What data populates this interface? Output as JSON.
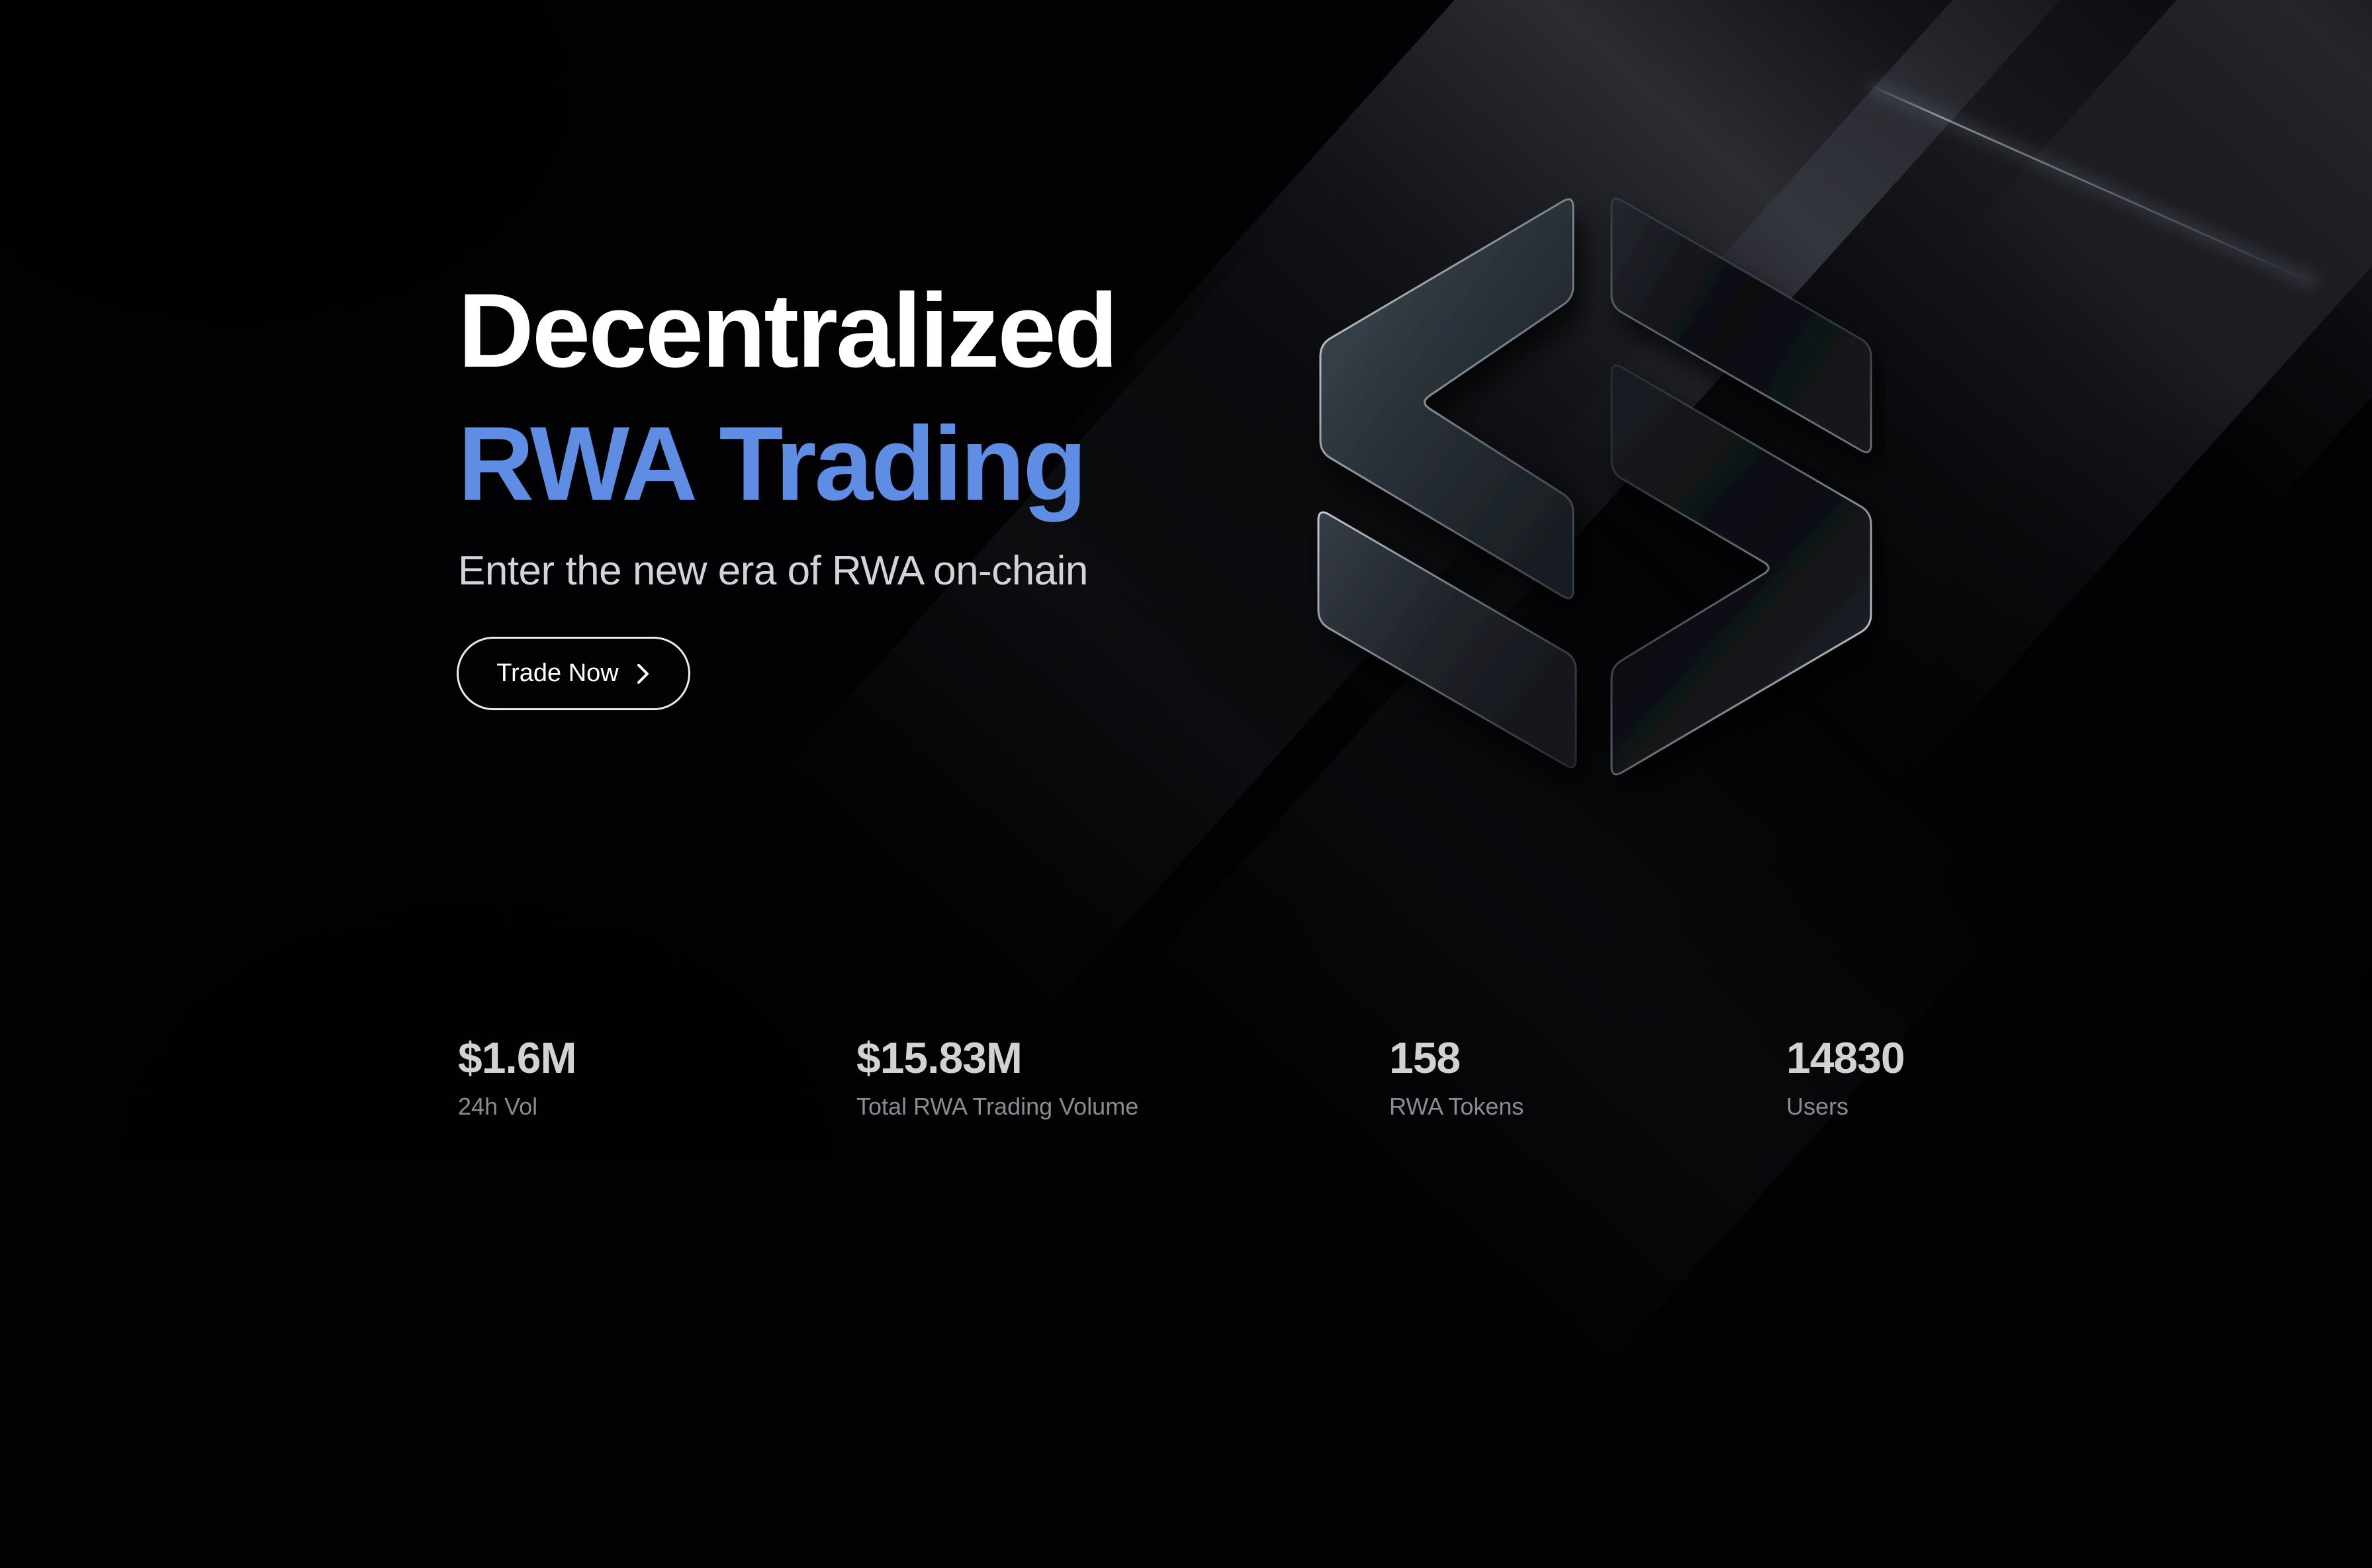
{
  "page": {
    "title": "Decentralized RWA Trading"
  },
  "hero": {
    "title_line1": "Decentralized",
    "title_line2": "RWA Trading",
    "subtitle": "Enter the new era of RWA on-chain",
    "cta": {
      "label": "Trade Now",
      "icon": "chevron-right"
    }
  },
  "logo": {
    "icon": "s-hexagon-glass-logo"
  },
  "stats": [
    {
      "value": "$1.6M",
      "label": "24h Vol"
    },
    {
      "value": "$15.83M",
      "label": "Total RWA Trading Volume"
    },
    {
      "value": "158",
      "label": "RWA Tokens"
    },
    {
      "value": "14830",
      "label": "Users"
    }
  ],
  "colors": {
    "background": "#020204",
    "accent_blue": "#5F8DE3",
    "title_white": "#FFFFFF",
    "subtitle_gray": "#D3D4D9",
    "stat_value": "#D2D2D5",
    "stat_label": "#8B8C91",
    "button_border": "#FFFFFF"
  }
}
